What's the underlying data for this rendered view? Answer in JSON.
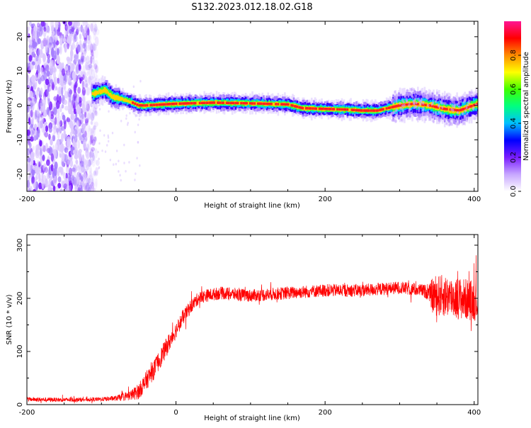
{
  "title": "S132.2023.012.18.02.G18",
  "chart_data": [
    {
      "type": "heatmap",
      "xlabel": "Height of straight line (km)",
      "ylabel": "Frequency (Hz)",
      "xlim": [
        -200,
        405
      ],
      "ylim": [
        -25,
        24.5
      ],
      "x_ticks": [
        -200,
        0,
        200,
        400
      ],
      "x_tick_labels": [
        "-200",
        "0",
        "200",
        "400"
      ],
      "y_ticks": [
        -20,
        -10,
        0,
        10,
        20
      ],
      "y_tick_labels": [
        "-20",
        "-10",
        "0",
        "10",
        "20"
      ],
      "colorbar": {
        "label": "Normalized spectral amplitude",
        "range": [
          0,
          1
        ],
        "ticks": [
          0,
          0.2,
          0.4,
          0.6,
          0.8
        ],
        "tick_labels": [
          "0.0",
          "0.2",
          "0.4",
          "0.6",
          "0.8"
        ],
        "colormap": [
          "#ffffff",
          "#c7a6ff",
          "#7a1dff",
          "#0000ff",
          "#00bfff",
          "#00ff80",
          "#40ff00",
          "#ffff00",
          "#ff8c00",
          "#ff0000",
          "#ff1493"
        ]
      },
      "center_line": {
        "x": [
          -110,
          -95,
          -85,
          -75,
          -60,
          -50,
          -40,
          0,
          50,
          100,
          150,
          170,
          200,
          230,
          250,
          270,
          300,
          320,
          340,
          360,
          380,
          405
        ],
        "y": [
          3.5,
          4.5,
          2.5,
          2.0,
          1.0,
          0,
          0,
          0.5,
          0.8,
          0.6,
          0.3,
          -0.8,
          -1.0,
          -1.2,
          -1.5,
          -1.5,
          0,
          0.5,
          0,
          -1.0,
          -1.5,
          0.5
        ]
      },
      "noise_region": {
        "x_range": [
          -200,
          -105
        ],
        "y_range": [
          -25,
          24.5
        ]
      },
      "grid": false
    },
    {
      "type": "line",
      "xlabel": "Height of straight line (km)",
      "ylabel": "SNR (10 * v/v)",
      "xlim": [
        -200,
        405
      ],
      "ylim": [
        0,
        320
      ],
      "x_ticks": [
        -200,
        0,
        200,
        400
      ],
      "x_tick_labels": [
        "-200",
        "0",
        "200",
        "400"
      ],
      "y_ticks": [
        0,
        100,
        200,
        300
      ],
      "y_tick_labels": [
        "0",
        "100",
        "200",
        "300"
      ],
      "series": [
        {
          "color": "#ff0000",
          "x": [
            -200,
            -150,
            -100,
            -80,
            -60,
            -50,
            -40,
            -30,
            -20,
            -10,
            0,
            10,
            20,
            30,
            40,
            60,
            100,
            150,
            200,
            250,
            300,
            330,
            340,
            345,
            360,
            380,
            405
          ],
          "y": [
            10,
            9,
            10,
            12,
            18,
            25,
            45,
            65,
            90,
            115,
            140,
            165,
            185,
            200,
            205,
            210,
            205,
            210,
            215,
            215,
            220,
            215,
            210,
            205,
            205,
            200,
            195
          ],
          "noise": [
            4,
            4,
            4,
            5,
            10,
            15,
            18,
            18,
            18,
            18,
            15,
            14,
            13,
            12,
            12,
            12,
            12,
            12,
            12,
            12,
            12,
            12,
            15,
            38,
            40,
            40,
            38
          ]
        }
      ],
      "grid": false
    }
  ]
}
